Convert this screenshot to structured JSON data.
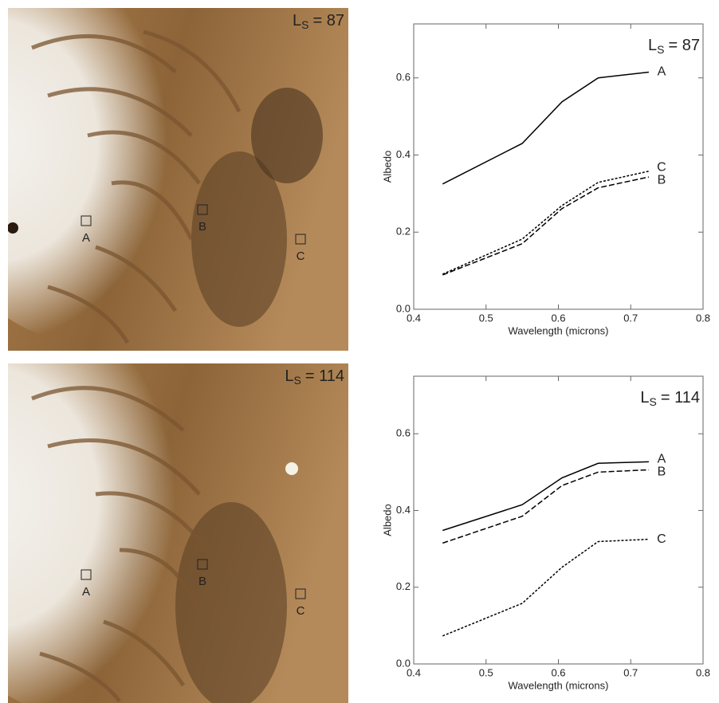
{
  "images": [
    {
      "season": {
        "main": "L",
        "sub": "S",
        "rest": "= 87"
      },
      "sites": [
        "A",
        "B",
        "C"
      ]
    },
    {
      "season": {
        "main": "L",
        "sub": "S",
        "rest": "= 114"
      },
      "sites": [
        "A",
        "B",
        "C"
      ]
    }
  ],
  "chart_data": [
    {
      "type": "line",
      "title": {
        "main": "L",
        "sub": "S",
        "rest": "= 87"
      },
      "x_label": "Wavelength (microns)",
      "y_label": "Albedo",
      "x": [
        0.44,
        0.55,
        0.605,
        0.655,
        0.725
      ],
      "series": [
        {
          "name": "A",
          "color": "#000000",
          "dash": "solid",
          "values": [
            0.325,
            0.43,
            0.538,
            0.6,
            0.615
          ]
        },
        {
          "name": "B",
          "color": "#000000",
          "dash": "dashed",
          "values": [
            0.089,
            0.17,
            0.261,
            0.315,
            0.343
          ]
        },
        {
          "name": "C",
          "color": "#000000",
          "dash": "dotted",
          "values": [
            0.091,
            0.182,
            0.269,
            0.329,
            0.358
          ]
        }
      ],
      "xlim": [
        0.4,
        0.8
      ],
      "xticks": [
        0.4,
        0.5,
        0.6,
        0.7,
        0.8
      ],
      "ylim": [
        0,
        0.74
      ],
      "yticks": [
        {
          "value": 0,
          "label": "0.0"
        },
        0.2,
        0.4,
        0.6
      ]
    },
    {
      "type": "line",
      "title": {
        "main": "L",
        "sub": "S",
        "rest": "= 114"
      },
      "x_label": "Wavelength (microns)",
      "y_label": "Albedo",
      "x": [
        0.44,
        0.55,
        0.605,
        0.655,
        0.725
      ],
      "series": [
        {
          "name": "A",
          "color": "#000000",
          "dash": "solid",
          "values": [
            0.348,
            0.415,
            0.485,
            0.523,
            0.527
          ]
        },
        {
          "name": "B",
          "color": "#000000",
          "dash": "dashed",
          "values": [
            0.315,
            0.385,
            0.465,
            0.5,
            0.506
          ]
        },
        {
          "name": "C",
          "color": "#000000",
          "dash": "dotted",
          "values": [
            0.073,
            0.158,
            0.252,
            0.319,
            0.325
          ]
        }
      ],
      "xlim": [
        0.4,
        0.8
      ],
      "xticks": [
        0.4,
        0.5,
        0.6,
        0.7,
        0.8
      ],
      "ylim": [
        0,
        0.75
      ],
      "yticks": [
        {
          "value": 0,
          "label": "0.0"
        },
        0.2,
        0.4,
        0.6
      ]
    }
  ]
}
